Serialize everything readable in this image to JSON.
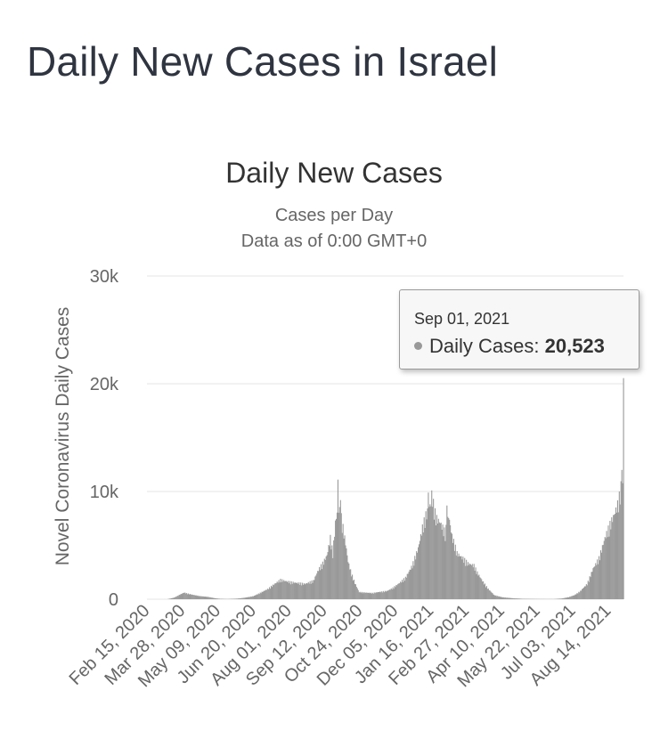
{
  "page_title": "Daily New Cases in Israel",
  "chart_data": {
    "type": "bar",
    "title": "Daily New Cases",
    "subtitle_lines": [
      "Cases per Day",
      "Data as of 0:00 GMT+0"
    ],
    "ylabel": "Novel Coronavirus Daily Cases",
    "xlabel": "",
    "ylim": [
      0,
      30000
    ],
    "yticks": [
      0,
      10000,
      20000,
      30000
    ],
    "ytick_labels": [
      "0",
      "10k",
      "20k",
      "30k"
    ],
    "x_start": "2020-02-15",
    "x_end": "2021-09-01",
    "xtick_dates": [
      "2020-02-15",
      "2020-03-28",
      "2020-05-09",
      "2020-06-20",
      "2020-08-01",
      "2020-09-12",
      "2020-10-24",
      "2020-12-05",
      "2021-01-16",
      "2021-02-27",
      "2021-04-10",
      "2021-05-22",
      "2021-07-03",
      "2021-08-14"
    ],
    "xtick_labels": [
      "Feb 15, 2020",
      "Mar 28, 2020",
      "May 09, 2020",
      "Jun 20, 2020",
      "Aug 01, 2020",
      "Sep 12, 2020",
      "Oct 24, 2020",
      "Dec 05, 2020",
      "Jan 16, 2021",
      "Feb 27, 2021",
      "Apr 10, 2021",
      "May 22, 2021",
      "Jul 03, 2021",
      "Aug 14, 2021"
    ],
    "grid": true,
    "series": [
      {
        "color": "#999999",
        "points": [
          [
            "2020-02-15",
            0
          ],
          [
            "2020-03-10",
            0
          ],
          [
            "2020-03-18",
            150
          ],
          [
            "2020-03-25",
            450
          ],
          [
            "2020-03-30",
            650
          ],
          [
            "2020-04-03",
            550
          ],
          [
            "2020-04-10",
            420
          ],
          [
            "2020-04-18",
            300
          ],
          [
            "2020-04-28",
            220
          ],
          [
            "2020-05-05",
            100
          ],
          [
            "2020-05-12",
            40
          ],
          [
            "2020-05-20",
            20
          ],
          [
            "2020-06-01",
            60
          ],
          [
            "2020-06-10",
            150
          ],
          [
            "2020-06-20",
            300
          ],
          [
            "2020-06-30",
            700
          ],
          [
            "2020-07-07",
            1000
          ],
          [
            "2020-07-15",
            1500
          ],
          [
            "2020-07-22",
            1900
          ],
          [
            "2020-08-01",
            1700
          ],
          [
            "2020-08-10",
            1600
          ],
          [
            "2020-08-20",
            1500
          ],
          [
            "2020-08-30",
            1800
          ],
          [
            "2020-09-05",
            2900
          ],
          [
            "2020-09-10",
            3500
          ],
          [
            "2020-09-15",
            4300
          ],
          [
            "2020-09-19",
            6000
          ],
          [
            "2020-09-22",
            4500
          ],
          [
            "2020-09-25",
            7500
          ],
          [
            "2020-09-28",
            9000
          ],
          [
            "2020-10-01",
            8500
          ],
          [
            "2020-10-04",
            7000
          ],
          [
            "2020-10-07",
            5500
          ],
          [
            "2020-10-10",
            3700
          ],
          [
            "2020-10-14",
            2500
          ],
          [
            "2020-10-18",
            1600
          ],
          [
            "2020-10-23",
            700
          ],
          [
            "2020-10-30",
            650
          ],
          [
            "2020-11-08",
            600
          ],
          [
            "2020-11-15",
            700
          ],
          [
            "2020-11-25",
            800
          ],
          [
            "2020-12-02",
            1100
          ],
          [
            "2020-12-10",
            1600
          ],
          [
            "2020-12-17",
            2100
          ],
          [
            "2020-12-25",
            3300
          ],
          [
            "2021-01-01",
            5000
          ],
          [
            "2021-01-06",
            7000
          ],
          [
            "2021-01-10",
            8200
          ],
          [
            "2021-01-14",
            9000
          ],
          [
            "2021-01-18",
            9800
          ],
          [
            "2021-01-22",
            8000
          ],
          [
            "2021-01-27",
            7500
          ],
          [
            "2021-02-02",
            6500
          ],
          [
            "2021-02-06",
            8200
          ],
          [
            "2021-02-10",
            6200
          ],
          [
            "2021-02-16",
            4500
          ],
          [
            "2021-02-23",
            4000
          ],
          [
            "2021-03-01",
            3500
          ],
          [
            "2021-03-08",
            3300
          ],
          [
            "2021-03-12",
            2600
          ],
          [
            "2021-03-18",
            1800
          ],
          [
            "2021-03-25",
            1000
          ],
          [
            "2021-04-01",
            400
          ],
          [
            "2021-04-10",
            200
          ],
          [
            "2021-04-22",
            100
          ],
          [
            "2021-05-05",
            40
          ],
          [
            "2021-05-25",
            20
          ],
          [
            "2021-06-10",
            15
          ],
          [
            "2021-06-20",
            70
          ],
          [
            "2021-06-28",
            200
          ],
          [
            "2021-07-05",
            400
          ],
          [
            "2021-07-12",
            800
          ],
          [
            "2021-07-20",
            1500
          ],
          [
            "2021-07-27",
            3000
          ],
          [
            "2021-08-03",
            4000
          ],
          [
            "2021-08-10",
            6000
          ],
          [
            "2021-08-17",
            7500
          ],
          [
            "2021-08-22",
            8500
          ],
          [
            "2021-08-26",
            9500
          ],
          [
            "2021-08-29",
            11000
          ],
          [
            "2021-08-31",
            11000
          ],
          [
            "2021-09-01",
            20523
          ]
        ],
        "spikes": [
          [
            "2020-09-28",
            11100
          ],
          [
            "2020-10-01",
            9200
          ],
          [
            "2021-01-17",
            10100
          ],
          [
            "2021-01-13",
            9900
          ],
          [
            "2021-02-04",
            8700
          ],
          [
            "2021-08-30",
            12000
          ]
        ]
      }
    ]
  },
  "tooltip": {
    "date": "Sep 01, 2021",
    "label": "Daily Cases:",
    "value": "20,523"
  }
}
